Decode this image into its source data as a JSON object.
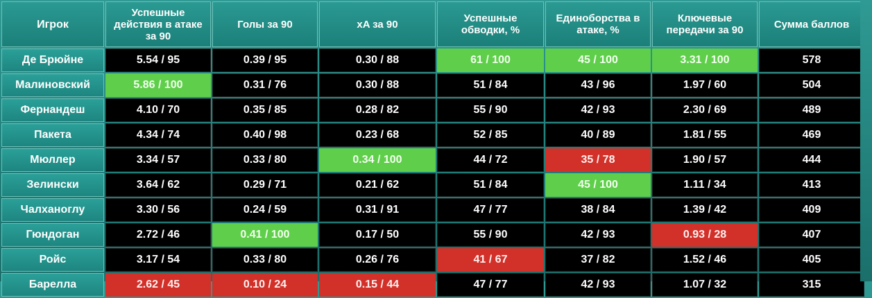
{
  "headers": [
    "Игрок",
    "Успешные действия в атаке за 90",
    "Голы за 90",
    "xA за 90",
    "Успешные обводки, %",
    "Единоборства в атаке, %",
    "Ключевые передачи за 90",
    "Сумма баллов"
  ],
  "rows": [
    {
      "player": "Де Брюйне",
      "cells": [
        "5.54 / 95",
        "0.39 / 95",
        "0.30 / 88",
        "61 / 100",
        "45 / 100",
        "3.31 / 100",
        "578"
      ],
      "highlight": [
        "",
        "",
        "",
        "green",
        "green",
        "green",
        ""
      ]
    },
    {
      "player": "Малиновский",
      "cells": [
        "5.86 / 100",
        "0.31 / 76",
        "0.30 / 88",
        "51 / 84",
        "43 / 96",
        "1.97 / 60",
        "504"
      ],
      "highlight": [
        "green",
        "",
        "",
        "",
        "",
        "",
        ""
      ]
    },
    {
      "player": "Фернандеш",
      "cells": [
        "4.10 / 70",
        "0.35 / 85",
        "0.28 / 82",
        "55 / 90",
        "42 / 93",
        "2.30 / 69",
        "489"
      ],
      "highlight": [
        "",
        "",
        "",
        "",
        "",
        "",
        ""
      ]
    },
    {
      "player": "Пакета",
      "cells": [
        "4.34 / 74",
        "0.40 / 98",
        "0.23 / 68",
        "52 / 85",
        "40 / 89",
        "1.81 / 55",
        "469"
      ],
      "highlight": [
        "",
        "",
        "",
        "",
        "",
        "",
        ""
      ]
    },
    {
      "player": "Мюллер",
      "cells": [
        "3.34 / 57",
        "0.33 / 80",
        "0.34 / 100",
        "44 / 72",
        "35 / 78",
        "1.90 / 57",
        "444"
      ],
      "highlight": [
        "",
        "",
        "green",
        "",
        "red",
        "",
        ""
      ]
    },
    {
      "player": "Зелински",
      "cells": [
        "3.64 / 62",
        "0.29 / 71",
        "0.21 / 62",
        "51 / 84",
        "45 / 100",
        "1.11 / 34",
        "413"
      ],
      "highlight": [
        "",
        "",
        "",
        "",
        "green",
        "",
        ""
      ]
    },
    {
      "player": "Чалханоглу",
      "cells": [
        "3.30 / 56",
        "0.24 / 59",
        "0.31 / 91",
        "47 / 77",
        "38 / 84",
        "1.39 / 42",
        "409"
      ],
      "highlight": [
        "",
        "",
        "",
        "",
        "",
        "",
        ""
      ]
    },
    {
      "player": "Гюндоган",
      "cells": [
        "2.72 / 46",
        "0.41 / 100",
        "0.17 / 50",
        "55 / 90",
        "42 / 93",
        "0.93 / 28",
        "407"
      ],
      "highlight": [
        "",
        "green",
        "",
        "",
        "",
        "red",
        ""
      ]
    },
    {
      "player": "Ройс",
      "cells": [
        "3.17 / 54",
        "0.33 / 80",
        "0.26 / 76",
        "41 / 67",
        "37 / 82",
        "1.52 / 46",
        "405"
      ],
      "highlight": [
        "",
        "",
        "",
        "red",
        "",
        "",
        ""
      ]
    },
    {
      "player": "Барелла",
      "cells": [
        "2.62 / 45",
        "0.10 / 24",
        "0.15 / 44",
        "47 / 77",
        "42 / 93",
        "1.07 / 32",
        "315"
      ],
      "highlight": [
        "red",
        "red",
        "red",
        "",
        "",
        "",
        ""
      ]
    }
  ],
  "colors": {
    "header_bg": "#2a9a92",
    "name_bg": "#2aa098",
    "cell_bg": "#000000",
    "best": "#5fcf4b",
    "worst": "#d2312a"
  }
}
